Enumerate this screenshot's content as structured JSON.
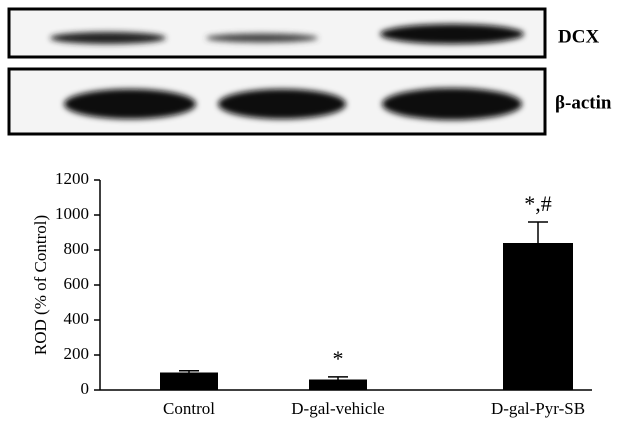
{
  "blot": {
    "labels": [
      "DCX",
      "β-actin"
    ]
  },
  "chart_data": {
    "type": "bar",
    "y_label": "ROD (% of Control)",
    "categories": [
      "Control",
      "D-gal-vehicle",
      "D-gal-Pyr-SB"
    ],
    "values": [
      100,
      60,
      840
    ],
    "errors": [
      10,
      15,
      120
    ],
    "value_annotations": [
      null,
      "*",
      "*,#"
    ],
    "color": "#000000",
    "ylim": [
      0,
      1200
    ],
    "yticks": [
      0,
      200,
      400,
      600,
      800,
      1000,
      1200
    ]
  }
}
